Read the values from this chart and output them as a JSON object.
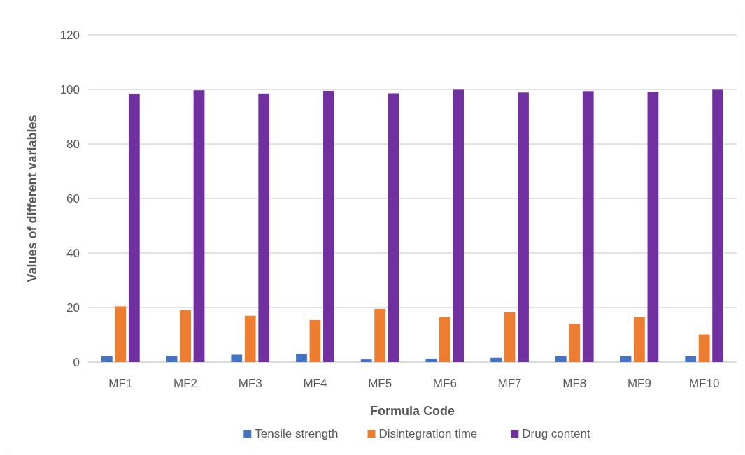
{
  "chart_data": {
    "type": "bar",
    "xlabel": "Formula Code",
    "ylabel": "Values of different variables",
    "categories": [
      "MF1",
      "MF2",
      "MF3",
      "MF4",
      "MF5",
      "MF6",
      "MF7",
      "MF8",
      "MF9",
      "MF10"
    ],
    "series": [
      {
        "name": "Tensile strength",
        "color": "#4472c4",
        "values": [
          2.1,
          2.3,
          2.7,
          3.0,
          1.0,
          1.3,
          1.6,
          2.1,
          2.1,
          2.1
        ]
      },
      {
        "name": "Disintegration time",
        "color": "#ed7d31",
        "values": [
          20.4,
          19.0,
          17.0,
          15.4,
          19.5,
          16.5,
          18.3,
          14.0,
          16.5,
          10.1
        ]
      },
      {
        "name": "Drug content",
        "color": "#7030a0",
        "values": [
          98.3,
          99.7,
          98.5,
          99.5,
          98.6,
          99.9,
          98.9,
          99.4,
          99.2,
          99.9
        ]
      }
    ],
    "ylim": [
      0,
      120
    ],
    "yticks": [
      0,
      20,
      40,
      60,
      80,
      100,
      120
    ],
    "grid": "y",
    "legend": "bottom"
  }
}
